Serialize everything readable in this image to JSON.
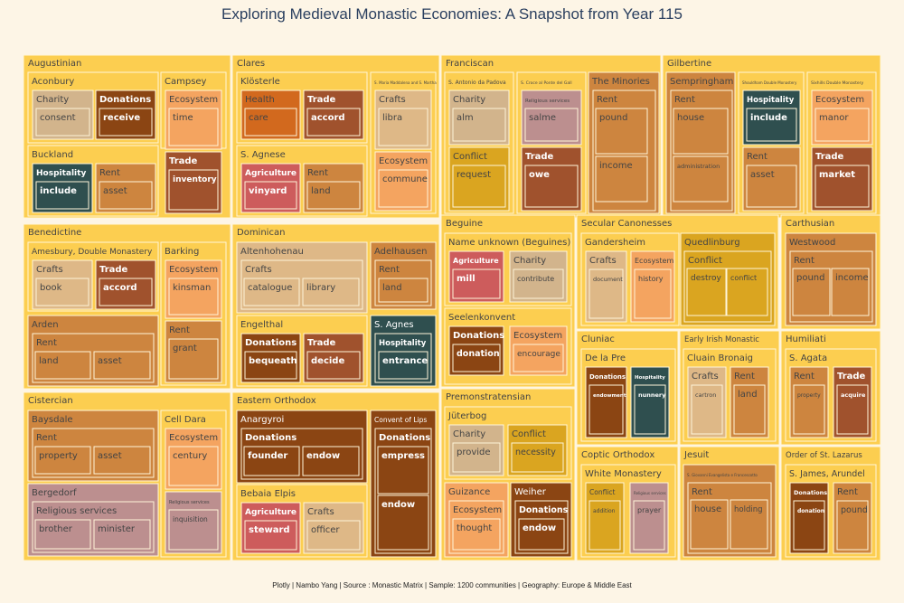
{
  "title": "Exploring Medieval Monastic Economies: A Snapshot from Year 115",
  "footer": "Plotly | Nambo Yang | Source : Monastic Matrix | Sample: 1200 communities | Geography: Europe & Middle East",
  "colors": {
    "background": "#fdf5e6",
    "order": "#fcce50",
    "Charity": "#d2b48c",
    "Donations": "#8b4513",
    "Ecosystem": "#f4a460",
    "Rent": "#cd853f",
    "Trade": "#a0522d",
    "Hospitality": "#2f4f4f",
    "Crafts": "#deb887",
    "Health": "#d2691e",
    "Agriculture": "#cd5c5c",
    "Conflict": "#daa520",
    "Religious services": "#bc8f8f"
  },
  "chart_data": {
    "type": "treemap",
    "title": "Exploring Medieval Monastic Economies: A Snapshot from Year 115",
    "levels": [
      "order",
      "community",
      "activity",
      "keyword"
    ],
    "tree": [
      {
        "label": "Augustinian",
        "children": [
          {
            "label": "Aconbury",
            "children": [
              {
                "label": "Charity",
                "children": [
                  {
                    "label": "consent"
                  }
                ]
              },
              {
                "label": "Donations",
                "children": [
                  {
                    "label": "receive"
                  }
                ]
              }
            ]
          },
          {
            "label": "Campsey",
            "children": [
              {
                "label": "Ecosystem",
                "children": [
                  {
                    "label": "time"
                  }
                ]
              },
              {
                "label": "Trade",
                "children": [
                  {
                    "label": "inventory"
                  }
                ]
              }
            ]
          },
          {
            "label": "Buckland",
            "children": [
              {
                "label": "Hospitality",
                "children": [
                  {
                    "label": "include"
                  }
                ]
              },
              {
                "label": "Rent",
                "children": [
                  {
                    "label": "asset"
                  }
                ]
              }
            ]
          }
        ]
      },
      {
        "label": "Clares",
        "children": [
          {
            "label": "Klösterle",
            "children": [
              {
                "label": "Health",
                "children": [
                  {
                    "label": "care"
                  }
                ]
              },
              {
                "label": "Trade",
                "children": [
                  {
                    "label": "accord"
                  }
                ]
              }
            ]
          },
          {
            "label": "S. Maria Maddalena and S. Martha",
            "children": [
              {
                "label": "Crafts",
                "children": [
                  {
                    "label": "libra"
                  }
                ]
              },
              {
                "label": "Ecosystem",
                "children": [
                  {
                    "label": "commune"
                  }
                ]
              }
            ]
          },
          {
            "label": "S. Agnese",
            "children": [
              {
                "label": "Agriculture",
                "children": [
                  {
                    "label": "vinyard"
                  }
                ]
              },
              {
                "label": "Rent",
                "children": [
                  {
                    "label": "land"
                  }
                ]
              }
            ]
          }
        ]
      },
      {
        "label": "Franciscan",
        "children": [
          {
            "label": "S. Antonio da Padova",
            "children": [
              {
                "label": "Charity",
                "children": [
                  {
                    "label": "alm"
                  }
                ]
              },
              {
                "label": "Conflict",
                "children": [
                  {
                    "label": "request"
                  }
                ]
              }
            ]
          },
          {
            "label": "S. Croce al Ponte del Gall",
            "children": [
              {
                "label": "Religious services",
                "children": [
                  {
                    "label": "salme"
                  }
                ]
              },
              {
                "label": "Trade",
                "children": [
                  {
                    "label": "owe"
                  }
                ]
              }
            ]
          },
          {
            "label": "The Minories",
            "children": [
              {
                "label": "Rent",
                "children": [
                  {
                    "label": "pound"
                  },
                  {
                    "label": "income"
                  }
                ]
              }
            ]
          }
        ]
      },
      {
        "label": "Gilbertine",
        "children": [
          {
            "label": "Sempringham",
            "children": [
              {
                "label": "Rent",
                "children": [
                  {
                    "label": "house"
                  },
                  {
                    "label": "administration"
                  }
                ]
              }
            ]
          },
          {
            "label": "Shouldham Double Monastery",
            "children": [
              {
                "label": "Hospitality",
                "children": [
                  {
                    "label": "include"
                  }
                ]
              },
              {
                "label": "Rent",
                "children": [
                  {
                    "label": "asset"
                  }
                ]
              }
            ]
          },
          {
            "label": "Sixhills Double Monastery",
            "children": [
              {
                "label": "Ecosystem",
                "children": [
                  {
                    "label": "manor"
                  }
                ]
              },
              {
                "label": "Trade",
                "children": [
                  {
                    "label": "market"
                  }
                ]
              }
            ]
          }
        ]
      },
      {
        "label": "Benedictine",
        "children": [
          {
            "label": "Amesbury, Double Monastery",
            "children": [
              {
                "label": "Crafts",
                "children": [
                  {
                    "label": "book"
                  }
                ]
              },
              {
                "label": "Trade",
                "children": [
                  {
                    "label": "accord"
                  }
                ]
              }
            ]
          },
          {
            "label": "Barking",
            "children": [
              {
                "label": "Ecosystem",
                "children": [
                  {
                    "label": "kinsman"
                  }
                ]
              },
              {
                "label": "Rent",
                "children": [
                  {
                    "label": "grant"
                  }
                ]
              }
            ]
          },
          {
            "label": "Arden",
            "children": [
              {
                "label": "Rent",
                "children": [
                  {
                    "label": "land"
                  },
                  {
                    "label": "asset"
                  }
                ]
              }
            ]
          }
        ]
      },
      {
        "label": "Dominican",
        "children": [
          {
            "label": "Altenhohenau",
            "children": [
              {
                "label": "Crafts",
                "children": [
                  {
                    "label": "catalogue"
                  },
                  {
                    "label": "library"
                  }
                ]
              }
            ]
          },
          {
            "label": "Adelhausen",
            "children": [
              {
                "label": "Rent",
                "children": [
                  {
                    "label": "land"
                  }
                ]
              }
            ]
          },
          {
            "label": "Engelthal",
            "children": [
              {
                "label": "Donations",
                "children": [
                  {
                    "label": "bequeath"
                  }
                ]
              },
              {
                "label": "Trade",
                "children": [
                  {
                    "label": "decide"
                  }
                ]
              }
            ]
          },
          {
            "label": "S. Agnes",
            "children": [
              {
                "label": "Hospitality",
                "children": [
                  {
                    "label": "entrance"
                  }
                ]
              }
            ]
          }
        ]
      },
      {
        "label": "Beguine",
        "children": [
          {
            "label": "Name unknown (Beguines)",
            "children": [
              {
                "label": "Agriculture",
                "children": [
                  {
                    "label": "mill"
                  }
                ]
              },
              {
                "label": "Charity",
                "children": [
                  {
                    "label": "contribute"
                  }
                ]
              }
            ]
          },
          {
            "label": "Seelenkonvent",
            "children": [
              {
                "label": "Donations",
                "children": [
                  {
                    "label": "donation"
                  }
                ]
              },
              {
                "label": "Ecosystem",
                "children": [
                  {
                    "label": "encourage"
                  }
                ]
              }
            ]
          }
        ]
      },
      {
        "label": "Secular Canonesses",
        "children": [
          {
            "label": "Gandersheim",
            "children": [
              {
                "label": "Crafts",
                "children": [
                  {
                    "label": "document"
                  }
                ]
              },
              {
                "label": "Ecosystem",
                "children": [
                  {
                    "label": "history"
                  }
                ]
              }
            ]
          },
          {
            "label": "Quedlinburg",
            "children": [
              {
                "label": "Conflict",
                "children": [
                  {
                    "label": "destroy"
                  },
                  {
                    "label": "conflict"
                  }
                ]
              }
            ]
          }
        ]
      },
      {
        "label": "Carthusian",
        "children": [
          {
            "label": "Westwood",
            "children": [
              {
                "label": "Rent",
                "children": [
                  {
                    "label": "pound"
                  },
                  {
                    "label": "income"
                  }
                ]
              }
            ]
          }
        ]
      },
      {
        "label": "Cluniac",
        "children": [
          {
            "label": "De la Pre",
            "children": [
              {
                "label": "Donations",
                "children": [
                  {
                    "label": "endowment"
                  }
                ]
              },
              {
                "label": "Hospitality",
                "children": [
                  {
                    "label": "nunnery"
                  }
                ]
              }
            ]
          }
        ]
      },
      {
        "label": "Early Irish Monastic",
        "children": [
          {
            "label": "Cluain Bronaig",
            "children": [
              {
                "label": "Crafts",
                "children": [
                  {
                    "label": "cartron"
                  }
                ]
              },
              {
                "label": "Rent",
                "children": [
                  {
                    "label": "land"
                  }
                ]
              }
            ]
          }
        ]
      },
      {
        "label": "Humiliati",
        "children": [
          {
            "label": "S. Agata",
            "children": [
              {
                "label": "Rent",
                "children": [
                  {
                    "label": "property"
                  }
                ]
              },
              {
                "label": "Trade",
                "children": [
                  {
                    "label": "acquire"
                  }
                ]
              }
            ]
          }
        ]
      },
      {
        "label": "Cistercian",
        "children": [
          {
            "label": "Baysdale",
            "children": [
              {
                "label": "Rent",
                "children": [
                  {
                    "label": "property"
                  },
                  {
                    "label": "asset"
                  }
                ]
              }
            ]
          },
          {
            "label": "Cell Dara",
            "children": [
              {
                "label": "Ecosystem",
                "children": [
                  {
                    "label": "century"
                  }
                ]
              },
              {
                "label": "Religious services",
                "children": [
                  {
                    "label": "inquisition"
                  }
                ]
              }
            ]
          },
          {
            "label": "Bergedorf",
            "children": [
              {
                "label": "Religious services",
                "children": [
                  {
                    "label": "brother"
                  },
                  {
                    "label": "minister"
                  }
                ]
              }
            ]
          }
        ]
      },
      {
        "label": "Eastern Orthodox",
        "children": [
          {
            "label": "Anargyroi",
            "children": [
              {
                "label": "Donations",
                "children": [
                  {
                    "label": "founder"
                  },
                  {
                    "label": "endow"
                  }
                ]
              }
            ]
          },
          {
            "label": "Convent of Lips",
            "children": [
              {
                "label": "Donations",
                "children": [
                  {
                    "label": "empress"
                  },
                  {
                    "label": "endow"
                  }
                ]
              }
            ]
          },
          {
            "label": "Bebaia Elpis",
            "children": [
              {
                "label": "Agriculture",
                "children": [
                  {
                    "label": "steward"
                  }
                ]
              },
              {
                "label": "Crafts",
                "children": [
                  {
                    "label": "officer"
                  }
                ]
              }
            ]
          }
        ]
      },
      {
        "label": "Premonstratensian",
        "children": [
          {
            "label": "Jüterbog",
            "children": [
              {
                "label": "Charity",
                "children": [
                  {
                    "label": "provide"
                  }
                ]
              },
              {
                "label": "Conflict",
                "children": [
                  {
                    "label": "necessity"
                  }
                ]
              }
            ]
          },
          {
            "label": "Guizance",
            "children": [
              {
                "label": "Ecosystem",
                "children": [
                  {
                    "label": "thought"
                  }
                ]
              }
            ]
          },
          {
            "label": "Weiher",
            "children": [
              {
                "label": "Donations",
                "children": [
                  {
                    "label": "endow"
                  }
                ]
              }
            ]
          }
        ]
      },
      {
        "label": "Coptic Orthodox",
        "children": [
          {
            "label": "White Monastery",
            "children": [
              {
                "label": "Conflict",
                "children": [
                  {
                    "label": "addition"
                  }
                ]
              },
              {
                "label": "Religious services",
                "children": [
                  {
                    "label": "prayer"
                  }
                ]
              }
            ]
          }
        ]
      },
      {
        "label": "Jesuit",
        "children": [
          {
            "label": "S. Giovanni Evangelista e Francescotto",
            "children": [
              {
                "label": "Rent",
                "children": [
                  {
                    "label": "house"
                  },
                  {
                    "label": "holding"
                  }
                ]
              }
            ]
          }
        ]
      },
      {
        "label": "Order of St. Lazarus",
        "children": [
          {
            "label": "S. James, Arundel",
            "children": [
              {
                "label": "Donations",
                "children": [
                  {
                    "label": "donation"
                  }
                ]
              },
              {
                "label": "Rent",
                "children": [
                  {
                    "label": "pound"
                  }
                ]
              }
            ]
          }
        ]
      }
    ]
  }
}
